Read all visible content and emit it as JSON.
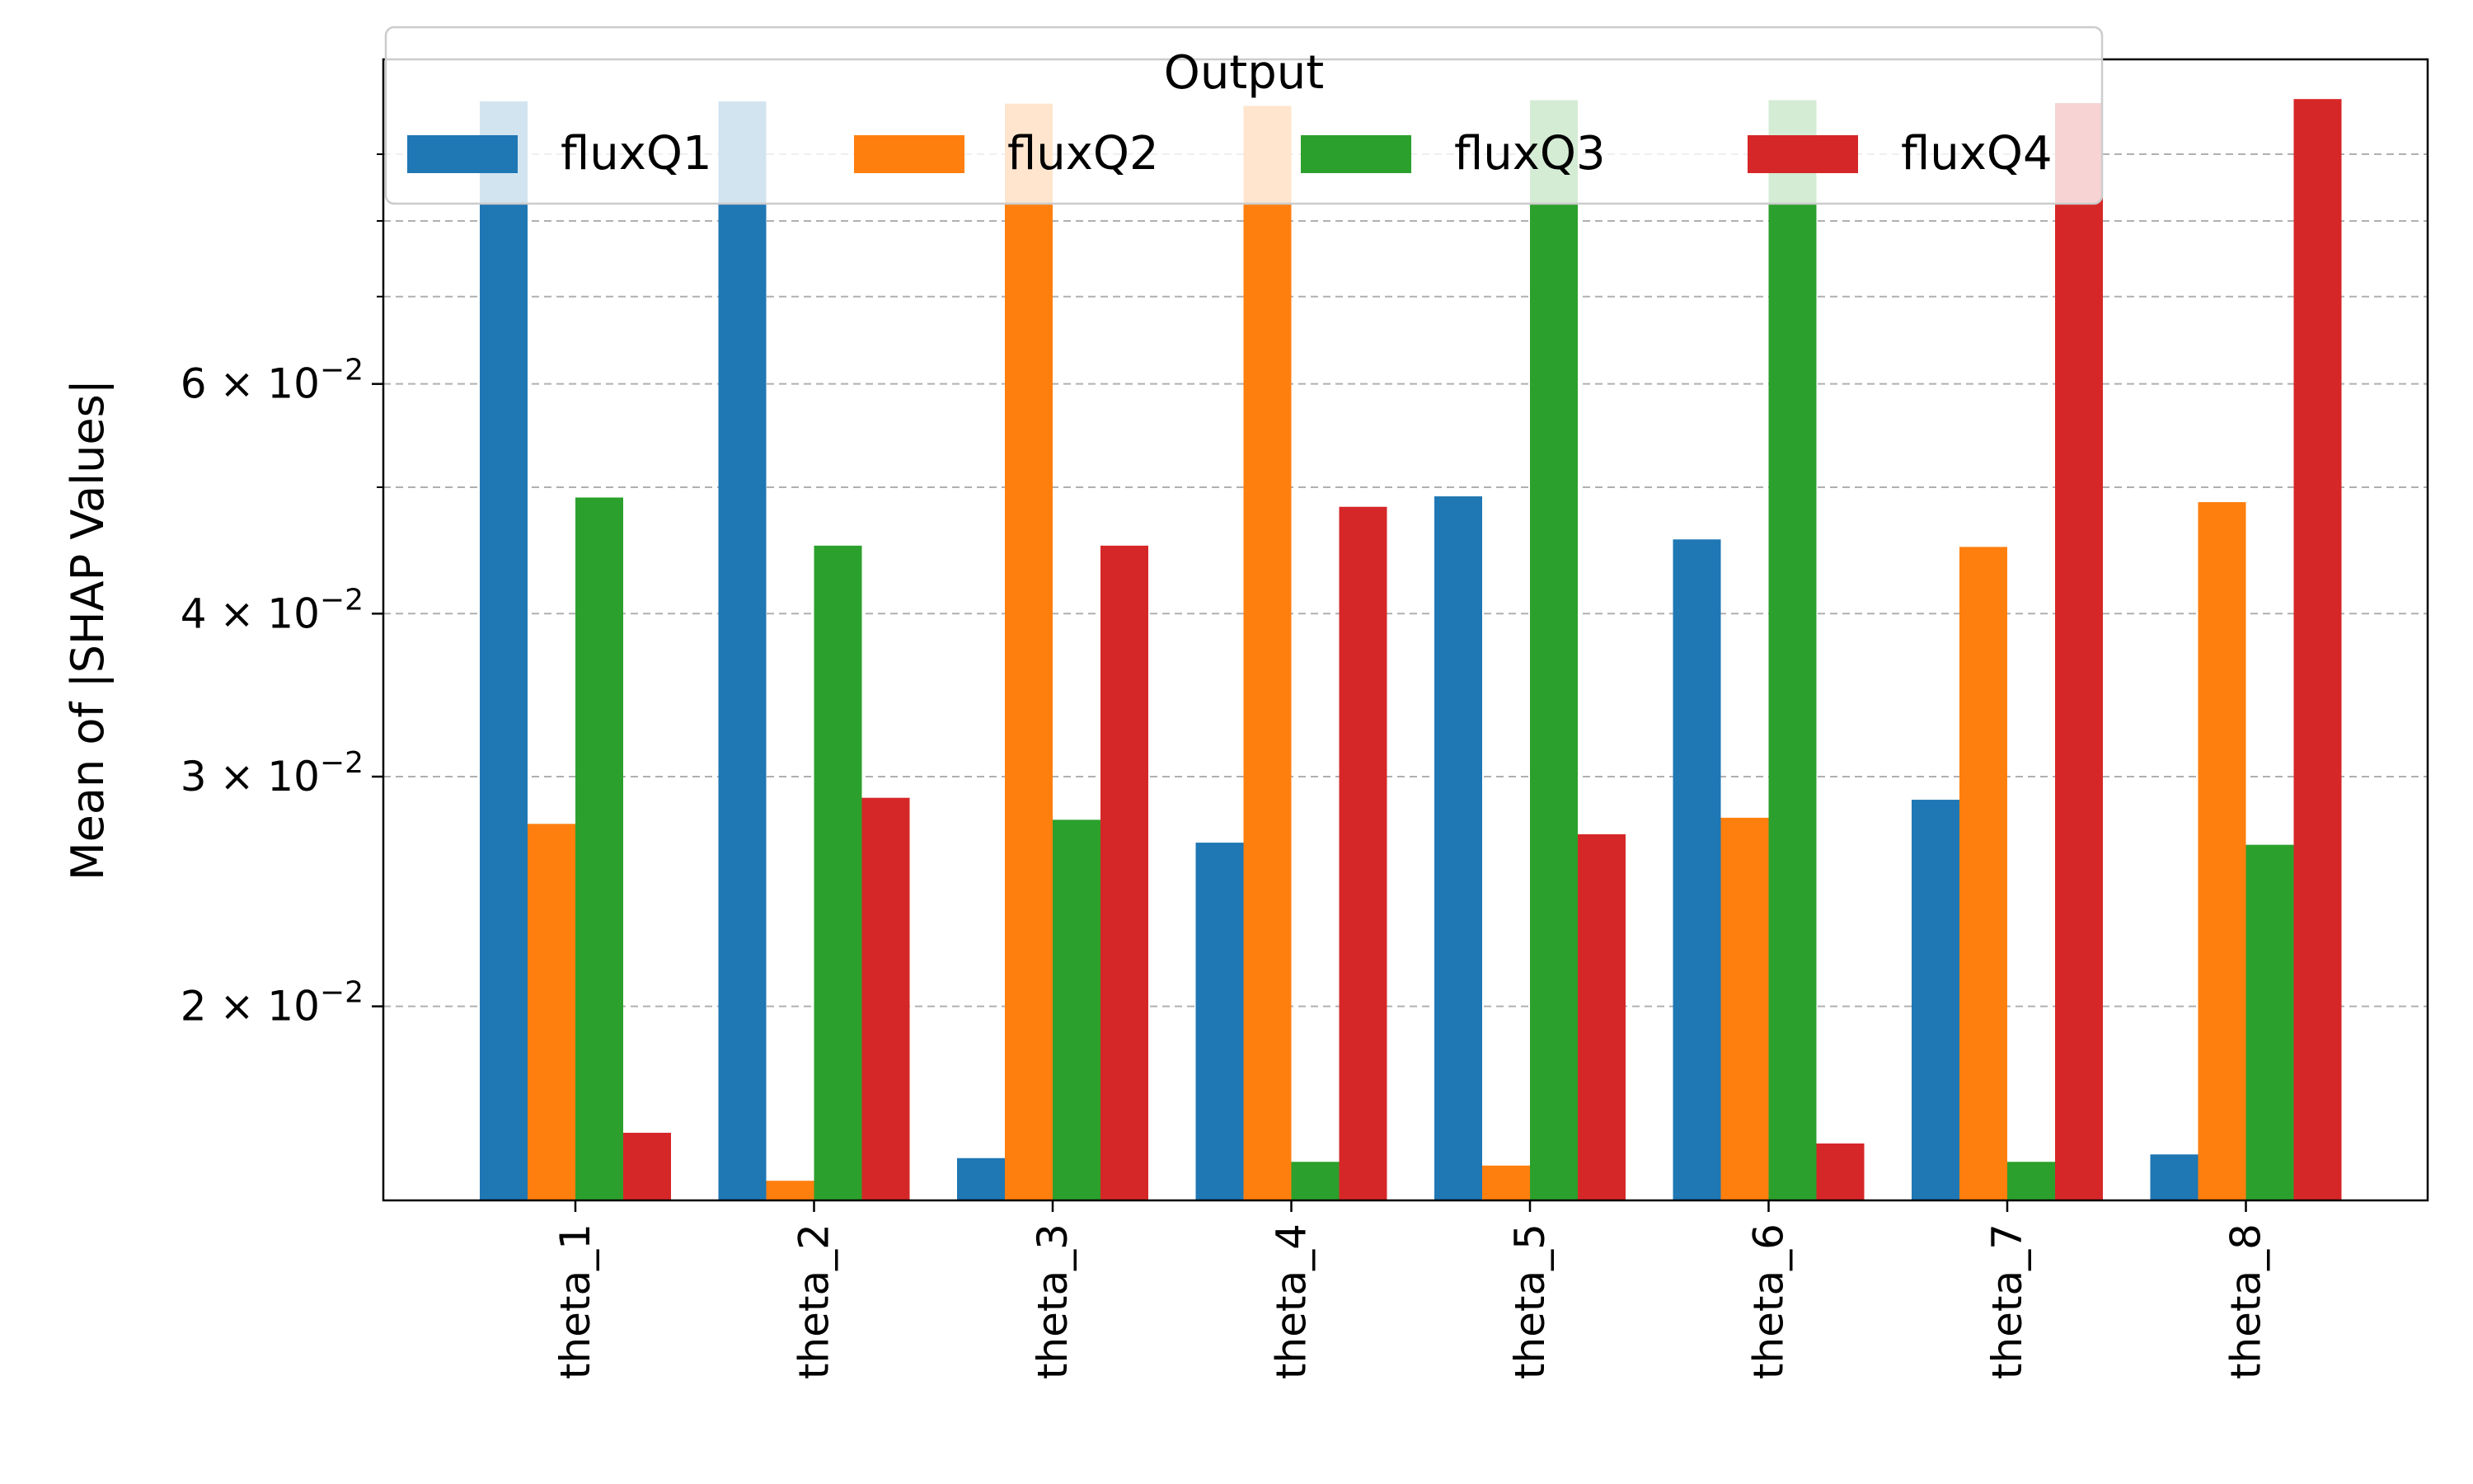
{
  "chart_data": {
    "type": "bar",
    "categories": [
      "theta_1",
      "theta_2",
      "theta_3",
      "theta_4",
      "theta_5",
      "theta_6",
      "theta_7",
      "theta_8"
    ],
    "series": [
      {
        "name": "fluxQ1",
        "color": "#1f77b4",
        "values": [
          0.0988,
          0.0988,
          0.0153,
          0.0267,
          0.0492,
          0.0456,
          0.0288,
          0.0154
        ]
      },
      {
        "name": "fluxQ2",
        "color": "#ff7f0e",
        "values": [
          0.0276,
          0.0147,
          0.0984,
          0.098,
          0.0151,
          0.0279,
          0.045,
          0.0487
        ]
      },
      {
        "name": "fluxQ3",
        "color": "#2ca02c",
        "values": [
          0.0491,
          0.0451,
          0.0278,
          0.0152,
          0.099,
          0.099,
          0.0152,
          0.0266
        ]
      },
      {
        "name": "fluxQ4",
        "color": "#d62728",
        "values": [
          0.016,
          0.0289,
          0.0451,
          0.0483,
          0.0271,
          0.0157,
          0.0985,
          0.0992
        ]
      }
    ],
    "xlabel": "",
    "ylabel": "Mean of |SHAP Values|",
    "yscale": "log",
    "ylim": [
      0.0142,
      0.1064
    ],
    "yticks_major": [
      {
        "value": 0.02,
        "label": "2 × 10⁻²"
      },
      {
        "value": 0.03,
        "label": "3 × 10⁻²"
      },
      {
        "value": 0.04,
        "label": "4 × 10⁻²"
      },
      {
        "value": 0.06,
        "label": "6 × 10⁻²"
      }
    ],
    "yticks_minor": [
      0.05,
      0.07,
      0.08,
      0.09
    ],
    "grid": "y dashed",
    "legend": {
      "title": "Output",
      "placement": "top-center",
      "columns": 4
    }
  }
}
